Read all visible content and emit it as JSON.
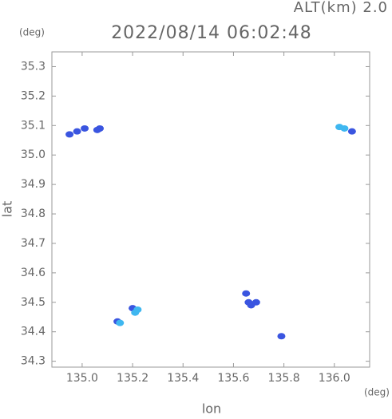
{
  "chart_data": {
    "type": "scatter",
    "title": "2022/08/14 06:02:48",
    "subtitle": "ALT(km) 2.0",
    "y_unit": "(deg)",
    "x_unit": "(deg)",
    "y_label": "lat",
    "x_label": "lon",
    "xlim": [
      134.88,
      136.14
    ],
    "ylim": [
      34.28,
      35.35
    ],
    "xticks": [
      {
        "value": 135.0,
        "label": "135.0"
      },
      135.2,
      135.4,
      135.6,
      135.8,
      {
        "value": 136.0,
        "label": "136.0"
      }
    ],
    "yticks": [
      34.3,
      34.4,
      34.5,
      34.6,
      34.7,
      34.8,
      34.9,
      {
        "value": 35.0,
        "label": "35.0"
      },
      35.1,
      35.2,
      35.3
    ],
    "series": [
      {
        "color": "#3a55e0",
        "x": [
          135.07,
          135.06,
          134.95,
          134.98,
          135.01,
          135.2,
          135.14,
          135.65,
          135.66,
          135.67,
          135.69,
          135.79,
          136.07
        ],
        "values": [
          35.09,
          35.085,
          35.07,
          35.08,
          35.09,
          34.48,
          34.435,
          34.53,
          34.5,
          34.49,
          34.5,
          34.385,
          35.08
        ]
      },
      {
        "color": "#3fb7f0",
        "x": [
          135.22,
          135.21,
          136.04,
          136.02,
          135.15
        ],
        "values": [
          34.475,
          34.465,
          35.09,
          35.095,
          34.43
        ]
      }
    ]
  }
}
